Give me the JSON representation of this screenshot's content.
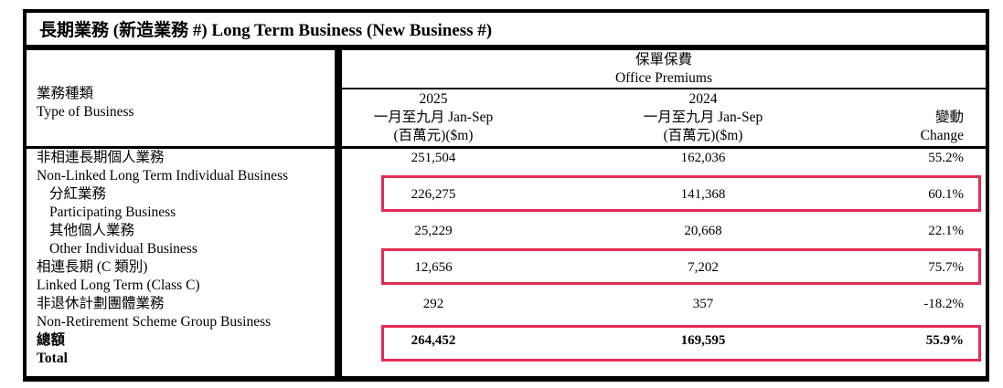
{
  "title": "長期業務 (新造業務 #)  Long Term Business (New Business #)",
  "colors": {
    "highlight_red": "#e32b54",
    "border_black": "#000000",
    "background": "#ffffff"
  },
  "header": {
    "type_of_business_zh": "業務種類",
    "type_of_business_en": "Type of Business",
    "office_premiums_zh": "保單保費",
    "office_premiums_en": "Office Premiums",
    "col_2025": {
      "year": "2025",
      "period": "一月至九月 Jan-Sep",
      "unit": "(百萬元)($m)"
    },
    "col_2024": {
      "year": "2024",
      "period": "一月至九月 Jan-Sep",
      "unit": "(百萬元)($m)"
    },
    "col_change": {
      "zh": "變動",
      "en": "Change"
    }
  },
  "rows": [
    {
      "name_zh": "非相連長期個人業務",
      "name_en": "Non-Linked Long Term Individual Business",
      "indent": false,
      "bold": false,
      "highlighted": false,
      "v2025": "251,504",
      "v2024": "162,036",
      "change": "55.2%"
    },
    {
      "name_zh": "分紅業務",
      "name_en": "Participating Business",
      "indent": true,
      "bold": false,
      "highlighted": true,
      "v2025": "226,275",
      "v2024": "141,368",
      "change": "60.1%"
    },
    {
      "name_zh": "其他個人業務",
      "name_en": "Other Individual Business",
      "indent": true,
      "bold": false,
      "highlighted": false,
      "v2025": "25,229",
      "v2024": "20,668",
      "change": "22.1%"
    },
    {
      "name_zh": "相連長期 (C 類別)",
      "name_en": "Linked Long Term (Class C)",
      "indent": false,
      "bold": false,
      "highlighted": true,
      "v2025": "12,656",
      "v2024": "7,202",
      "change": "75.7%"
    },
    {
      "name_zh": "非退休計劃團體業務",
      "name_en": "Non-Retirement Scheme Group Business",
      "indent": false,
      "bold": false,
      "highlighted": false,
      "v2025": "292",
      "v2024": "357",
      "change": "-18.2%"
    },
    {
      "name_zh": "總額",
      "name_en": "Total",
      "indent": false,
      "bold": true,
      "highlighted": true,
      "v2025": "264,452",
      "v2024": "169,595",
      "change": "55.9%"
    }
  ]
}
